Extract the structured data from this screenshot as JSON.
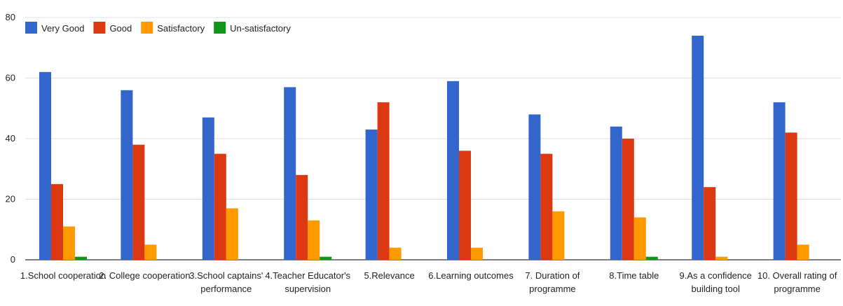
{
  "chart_data": {
    "type": "bar",
    "categories": [
      [
        "1.School cooperation"
      ],
      [
        "2. College cooperation"
      ],
      [
        "3.School captains'",
        "performance"
      ],
      [
        "4.Teacher Educator's",
        "supervision"
      ],
      [
        "5.Relevance"
      ],
      [
        "6.Learning outcomes"
      ],
      [
        "7. Duration of",
        "programme"
      ],
      [
        "8.Time table"
      ],
      [
        "9.As a confidence",
        "building tool"
      ],
      [
        "10. Overall rating of",
        "programme"
      ]
    ],
    "series": [
      {
        "name": "Very Good",
        "color": "#3366cc",
        "values": [
          62,
          56,
          47,
          57,
          43,
          59,
          48,
          44,
          74,
          52
        ]
      },
      {
        "name": "Good",
        "color": "#dc3912",
        "values": [
          25,
          38,
          35,
          28,
          52,
          36,
          35,
          40,
          24,
          42
        ]
      },
      {
        "name": "Satisfactory",
        "color": "#ff9900",
        "values": [
          11,
          5,
          17,
          13,
          4,
          4,
          16,
          14,
          1,
          5
        ]
      },
      {
        "name": "Un-satisfactory",
        "color": "#109618",
        "values": [
          1,
          0,
          0,
          1,
          0,
          0,
          0,
          1,
          0,
          0
        ]
      }
    ],
    "yticks": [
      0,
      20,
      40,
      60,
      80
    ],
    "ylim": [
      0,
      80
    ],
    "grid": true,
    "legend": "top-left",
    "gridColor": "#e0e0e0",
    "axisColor": "#333333"
  }
}
